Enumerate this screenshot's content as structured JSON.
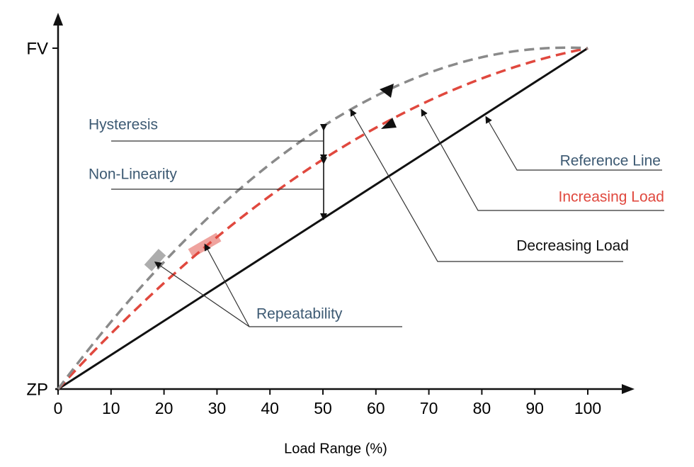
{
  "axes": {
    "y_top": "FV",
    "y_bottom": "ZP",
    "x_title": "Load Range (%)",
    "x_ticks": [
      0,
      10,
      20,
      30,
      40,
      50,
      60,
      70,
      80,
      90,
      100
    ]
  },
  "labels": {
    "hysteresis": "Hysteresis",
    "non_linearity": "Non-Linearity",
    "reference_line": "Reference Line",
    "increasing_load": "Increasing Load",
    "decreasing_load": "Decreasing Load",
    "repeatability": "Repeatability"
  }
}
